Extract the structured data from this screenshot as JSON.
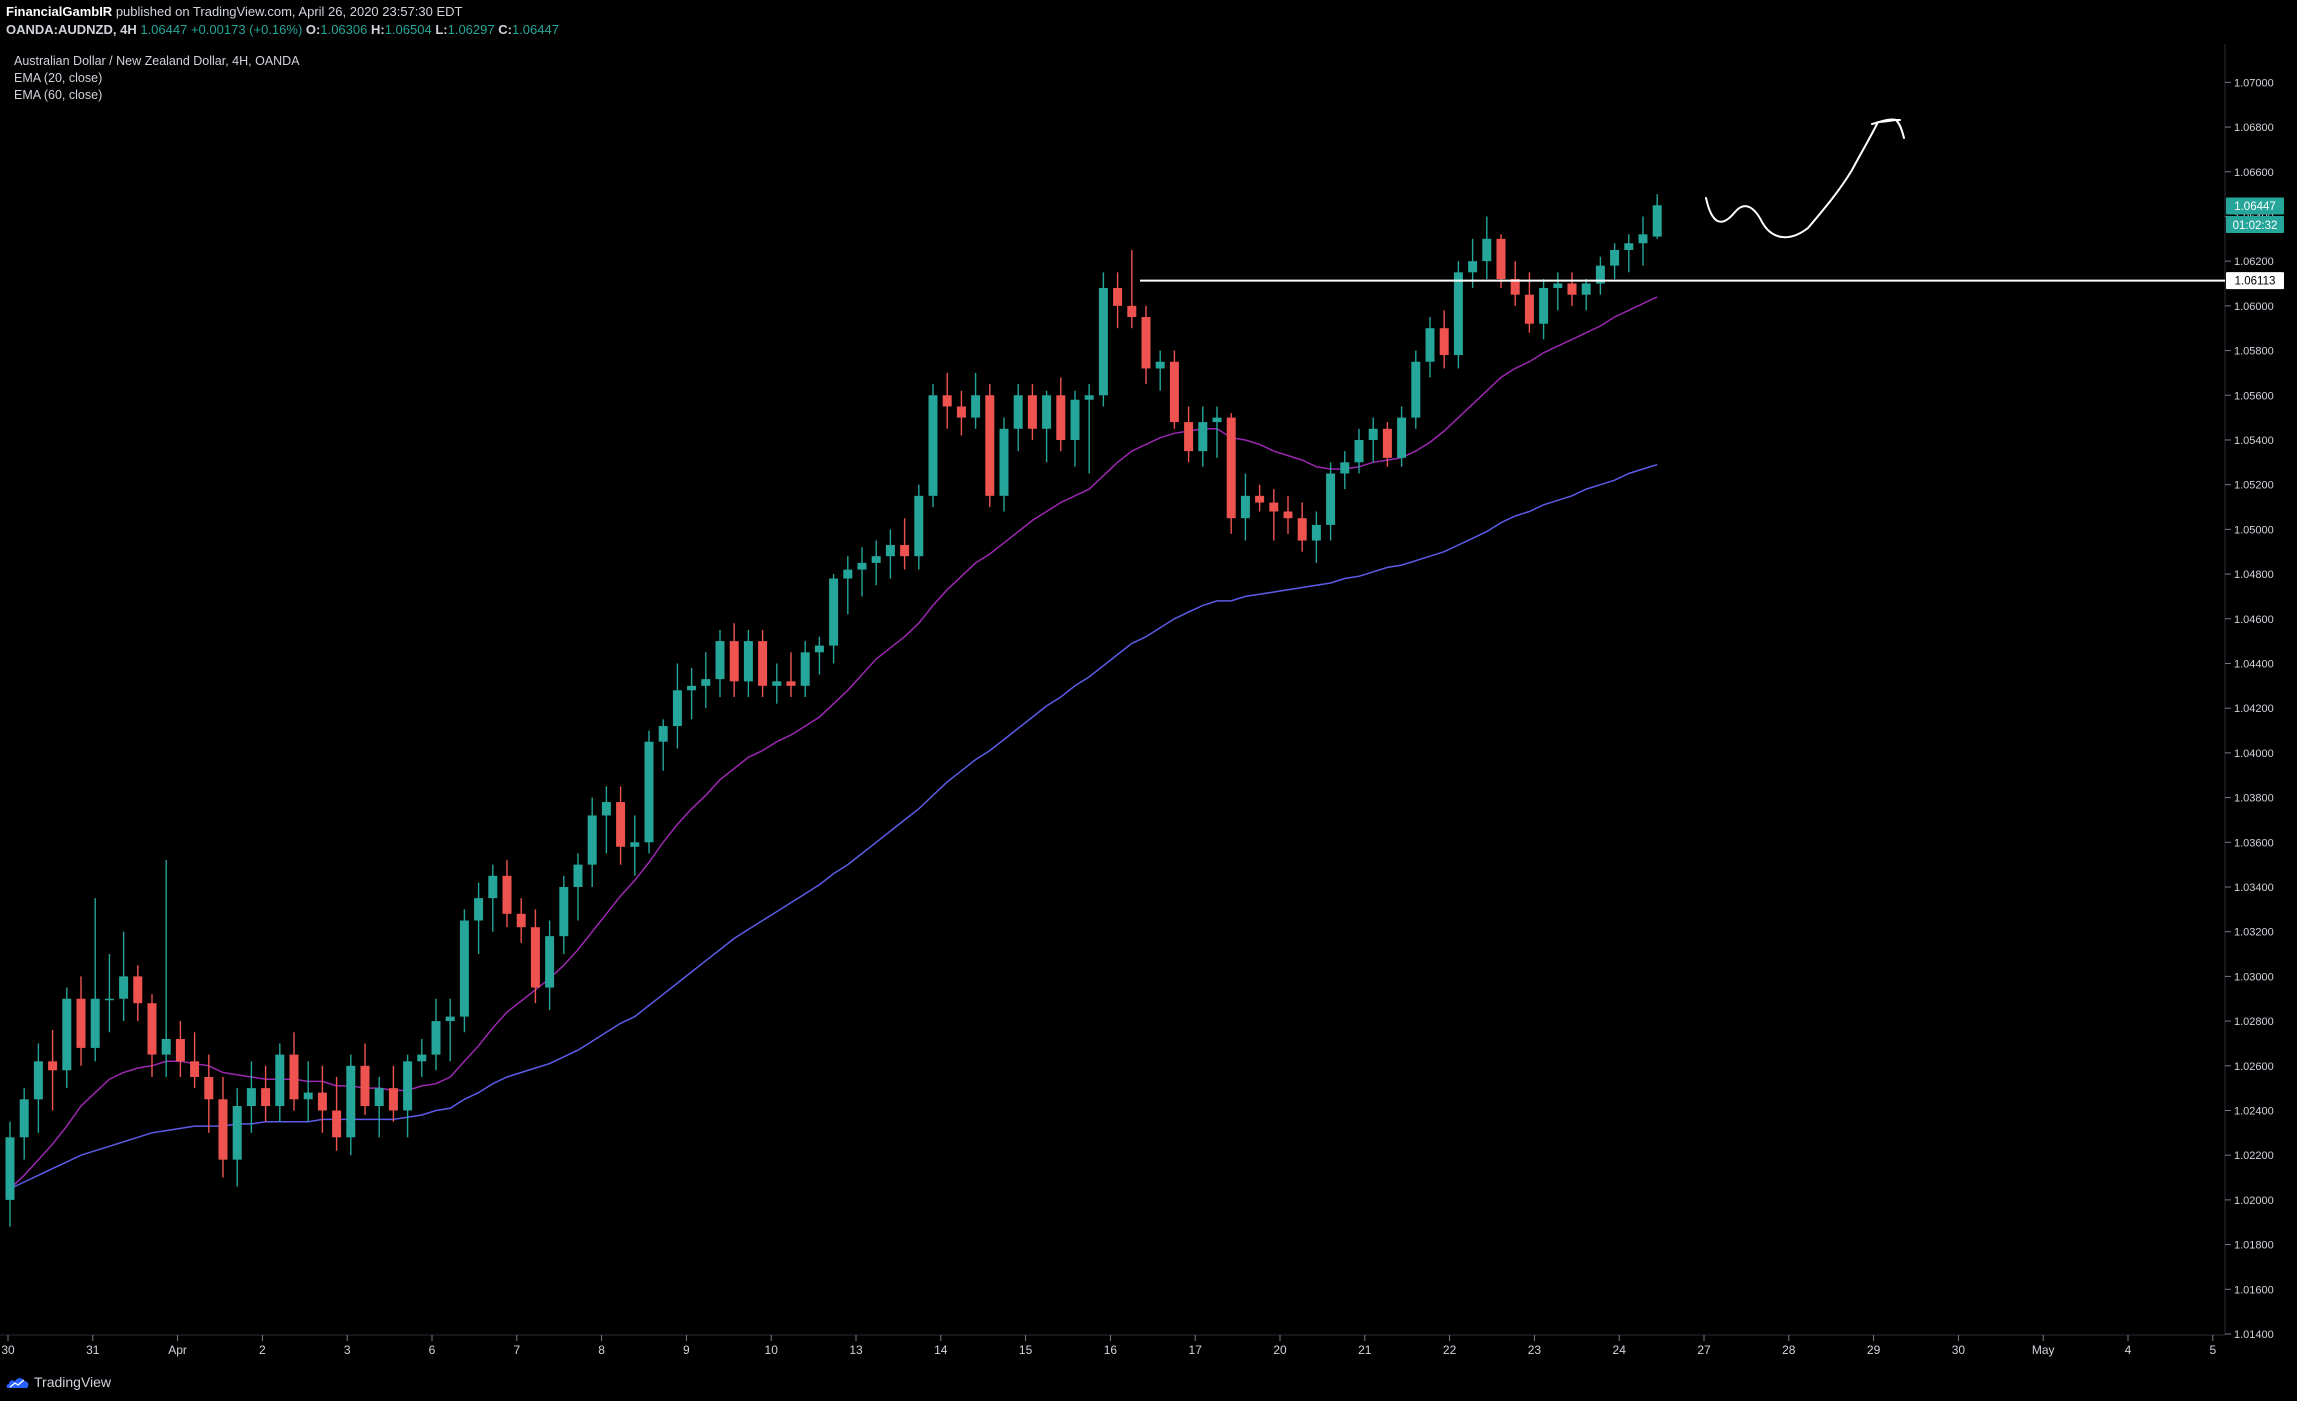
{
  "header": {
    "publisher": "FinancialGambIR",
    "published_text": "published on TradingView.com, April 26, 2020 23:57:30 EDT",
    "symbol_line": {
      "symbol": "OANDA:AUDNZD, 4H",
      "last": "1.06447",
      "change": "+0.00173 (+0.16%)",
      "o_label": "O:",
      "o": "1.06306",
      "h_label": "H:",
      "h": "1.06504",
      "l_label": "L:",
      "l": "1.06297",
      "c_label": "C:",
      "c": "1.06447"
    }
  },
  "legend": {
    "title": "Australian Dollar / New Zealand Dollar, 4H, OANDA",
    "ema1": "EMA (20, close)",
    "ema2": "EMA (60, close)"
  },
  "footer": {
    "brand": "TradingView"
  },
  "colors": {
    "up": "#26a69a",
    "down": "#ef5350",
    "ema20": "#9c27b0",
    "ema60": "#5c5ce8",
    "grid_axis": "#787b86",
    "hline": "#ffffff"
  },
  "chart_data": {
    "type": "candlestick",
    "title": "Australian Dollar / New Zealand Dollar, 4H, OANDA",
    "ylim": [
      1.014,
      1.071
    ],
    "y_ticks": [
      "1.07000",
      "1.06800",
      "1.06600",
      "1.06400",
      "1.06200",
      "1.06000",
      "1.05800",
      "1.05600",
      "1.05400",
      "1.05200",
      "1.05000",
      "1.04800",
      "1.04600",
      "1.04400",
      "1.04200",
      "1.04000",
      "1.03800",
      "1.03600",
      "1.03400",
      "1.03200",
      "1.03000",
      "1.02800",
      "1.02600",
      "1.02400",
      "1.02200",
      "1.02000",
      "1.01800",
      "1.01600",
      "1.01400"
    ],
    "x_ticks": [
      "30",
      "31",
      "Apr",
      "2",
      "3",
      "6",
      "7",
      "8",
      "9",
      "10",
      "13",
      "14",
      "15",
      "16",
      "17",
      "20",
      "21",
      "22",
      "23",
      "24",
      "27",
      "28",
      "29",
      "30",
      "May",
      "4",
      "5"
    ],
    "price_label": "1.06447",
    "countdown_label": "01:02:32",
    "hline_label": "1.06113",
    "hline_value": 1.06113,
    "candles_ohlc": [
      [
        1.02,
        1.0235,
        1.0188,
        1.0228
      ],
      [
        1.0228,
        1.025,
        1.0218,
        1.0245
      ],
      [
        1.0245,
        1.027,
        1.023,
        1.0262
      ],
      [
        1.0262,
        1.0276,
        1.024,
        1.0258
      ],
      [
        1.0258,
        1.0295,
        1.025,
        1.029
      ],
      [
        1.029,
        1.03,
        1.026,
        1.0268
      ],
      [
        1.0268,
        1.0335,
        1.0262,
        1.029
      ],
      [
        1.029,
        1.031,
        1.0275,
        1.029
      ],
      [
        1.029,
        1.032,
        1.028,
        1.03
      ],
      [
        1.03,
        1.0305,
        1.028,
        1.0288
      ],
      [
        1.0288,
        1.0292,
        1.0255,
        1.0265
      ],
      [
        1.0265,
        1.0352,
        1.0255,
        1.0272
      ],
      [
        1.0272,
        1.028,
        1.0255,
        1.0262
      ],
      [
        1.0262,
        1.0275,
        1.025,
        1.0255
      ],
      [
        1.0255,
        1.0265,
        1.023,
        1.0245
      ],
      [
        1.0245,
        1.0255,
        1.021,
        1.0218
      ],
      [
        1.0218,
        1.025,
        1.0206,
        1.0242
      ],
      [
        1.0242,
        1.0262,
        1.023,
        1.025
      ],
      [
        1.025,
        1.026,
        1.0235,
        1.0242
      ],
      [
        1.0242,
        1.027,
        1.0235,
        1.0265
      ],
      [
        1.0265,
        1.0275,
        1.024,
        1.0245
      ],
      [
        1.0245,
        1.0262,
        1.0235,
        1.0248
      ],
      [
        1.0248,
        1.026,
        1.023,
        1.024
      ],
      [
        1.024,
        1.0255,
        1.0222,
        1.0228
      ],
      [
        1.0228,
        1.0265,
        1.022,
        1.026
      ],
      [
        1.026,
        1.027,
        1.0238,
        1.0242
      ],
      [
        1.0242,
        1.0255,
        1.0228,
        1.025
      ],
      [
        1.025,
        1.026,
        1.0235,
        1.024
      ],
      [
        1.024,
        1.0265,
        1.0228,
        1.0262
      ],
      [
        1.0262,
        1.0272,
        1.0255,
        1.0265
      ],
      [
        1.0265,
        1.029,
        1.0258,
        1.028
      ],
      [
        1.028,
        1.029,
        1.0262,
        1.0282
      ],
      [
        1.0282,
        1.033,
        1.0275,
        1.0325
      ],
      [
        1.0325,
        1.0342,
        1.031,
        1.0335
      ],
      [
        1.0335,
        1.035,
        1.032,
        1.0345
      ],
      [
        1.0345,
        1.0352,
        1.0322,
        1.0328
      ],
      [
        1.0328,
        1.0335,
        1.0315,
        1.0322
      ],
      [
        1.0322,
        1.033,
        1.0288,
        1.0295
      ],
      [
        1.0295,
        1.0325,
        1.0285,
        1.0318
      ],
      [
        1.0318,
        1.0345,
        1.031,
        1.034
      ],
      [
        1.034,
        1.0355,
        1.0325,
        1.035
      ],
      [
        1.035,
        1.038,
        1.034,
        1.0372
      ],
      [
        1.0372,
        1.0385,
        1.0355,
        1.0378
      ],
      [
        1.0378,
        1.0385,
        1.035,
        1.0358
      ],
      [
        1.0358,
        1.0372,
        1.0345,
        1.036
      ],
      [
        1.036,
        1.041,
        1.0355,
        1.0405
      ],
      [
        1.0405,
        1.0415,
        1.0392,
        1.0412
      ],
      [
        1.0412,
        1.044,
        1.0402,
        1.0428
      ],
      [
        1.0428,
        1.0438,
        1.0415,
        1.043
      ],
      [
        1.043,
        1.0445,
        1.042,
        1.0433
      ],
      [
        1.0433,
        1.0455,
        1.0425,
        1.045
      ],
      [
        1.045,
        1.0458,
        1.0425,
        1.0432
      ],
      [
        1.0432,
        1.0455,
        1.0425,
        1.045
      ],
      [
        1.045,
        1.0455,
        1.0425,
        1.043
      ],
      [
        1.043,
        1.044,
        1.0422,
        1.0432
      ],
      [
        1.0432,
        1.0445,
        1.0425,
        1.043
      ],
      [
        1.043,
        1.045,
        1.0425,
        1.0445
      ],
      [
        1.0445,
        1.0452,
        1.0435,
        1.0448
      ],
      [
        1.0448,
        1.048,
        1.044,
        1.0478
      ],
      [
        1.0478,
        1.0488,
        1.0462,
        1.0482
      ],
      [
        1.0482,
        1.0492,
        1.047,
        1.0485
      ],
      [
        1.0485,
        1.0495,
        1.0475,
        1.0488
      ],
      [
        1.0488,
        1.05,
        1.0478,
        1.0493
      ],
      [
        1.0493,
        1.0505,
        1.0482,
        1.0488
      ],
      [
        1.0488,
        1.052,
        1.0482,
        1.0515
      ],
      [
        1.0515,
        1.0565,
        1.051,
        1.056
      ],
      [
        1.056,
        1.057,
        1.0545,
        1.0555
      ],
      [
        1.0555,
        1.0562,
        1.0542,
        1.055
      ],
      [
        1.055,
        1.057,
        1.0545,
        1.056
      ],
      [
        1.056,
        1.0565,
        1.051,
        1.0515
      ],
      [
        1.0515,
        1.055,
        1.0508,
        1.0545
      ],
      [
        1.0545,
        1.0565,
        1.0535,
        1.056
      ],
      [
        1.056,
        1.0565,
        1.054,
        1.0545
      ],
      [
        1.0545,
        1.0562,
        1.053,
        1.056
      ],
      [
        1.056,
        1.0568,
        1.0535,
        1.054
      ],
      [
        1.054,
        1.0562,
        1.0528,
        1.0558
      ],
      [
        1.0558,
        1.0565,
        1.0525,
        1.056
      ],
      [
        1.056,
        1.0615,
        1.0555,
        1.0608
      ],
      [
        1.0608,
        1.0615,
        1.059,
        1.06
      ],
      [
        1.06,
        1.0625,
        1.059,
        1.0595
      ],
      [
        1.0595,
        1.06,
        1.0565,
        1.0572
      ],
      [
        1.0572,
        1.058,
        1.0562,
        1.0575
      ],
      [
        1.0575,
        1.058,
        1.0545,
        1.0548
      ],
      [
        1.0548,
        1.0555,
        1.053,
        1.0535
      ],
      [
        1.0535,
        1.0555,
        1.0528,
        1.0548
      ],
      [
        1.0548,
        1.0555,
        1.0532,
        1.055
      ],
      [
        1.055,
        1.0552,
        1.0498,
        1.0505
      ],
      [
        1.0505,
        1.0525,
        1.0495,
        1.0515
      ],
      [
        1.0515,
        1.052,
        1.0508,
        1.0512
      ],
      [
        1.0512,
        1.0518,
        1.0495,
        1.0508
      ],
      [
        1.0508,
        1.0515,
        1.0498,
        1.0505
      ],
      [
        1.0505,
        1.0512,
        1.049,
        1.0495
      ],
      [
        1.0495,
        1.0508,
        1.0485,
        1.0502
      ],
      [
        1.0502,
        1.053,
        1.0495,
        1.0525
      ],
      [
        1.0525,
        1.0535,
        1.0518,
        1.053
      ],
      [
        1.053,
        1.0545,
        1.0525,
        1.054
      ],
      [
        1.054,
        1.055,
        1.053,
        1.0545
      ],
      [
        1.0545,
        1.0548,
        1.0528,
        1.0532
      ],
      [
        1.0532,
        1.0555,
        1.0528,
        1.055
      ],
      [
        1.055,
        1.058,
        1.0545,
        1.0575
      ],
      [
        1.0575,
        1.0595,
        1.0568,
        1.059
      ],
      [
        1.059,
        1.0598,
        1.0572,
        1.0578
      ],
      [
        1.0578,
        1.062,
        1.0572,
        1.0615
      ],
      [
        1.0615,
        1.063,
        1.0608,
        1.062
      ],
      [
        1.062,
        1.064,
        1.0612,
        1.063
      ],
      [
        1.063,
        1.0632,
        1.0608,
        1.0612
      ],
      [
        1.0612,
        1.062,
        1.06,
        1.0605
      ],
      [
        1.0605,
        1.0615,
        1.0588,
        1.0592
      ],
      [
        1.0592,
        1.0612,
        1.0585,
        1.0608
      ],
      [
        1.0608,
        1.0615,
        1.0598,
        1.061
      ],
      [
        1.061,
        1.0615,
        1.06,
        1.0605
      ],
      [
        1.0605,
        1.0612,
        1.0598,
        1.061
      ],
      [
        1.061,
        1.0622,
        1.0605,
        1.0618
      ],
      [
        1.0618,
        1.0628,
        1.0612,
        1.0625
      ],
      [
        1.0625,
        1.0632,
        1.0615,
        1.0628
      ],
      [
        1.0628,
        1.064,
        1.0618,
        1.0632
      ],
      [
        1.0631,
        1.065,
        1.063,
        1.0645
      ]
    ],
    "ema20": [
      1.0205,
      1.0211,
      1.0218,
      1.0225,
      1.0233,
      1.0242,
      1.0248,
      1.0254,
      1.0257,
      1.0259,
      1.026,
      1.0262,
      1.0262,
      1.0261,
      1.026,
      1.0257,
      1.0256,
      1.0255,
      1.0254,
      1.0254,
      1.0254,
      1.0253,
      1.0253,
      1.0251,
      1.0251,
      1.025,
      1.025,
      1.0249,
      1.0249,
      1.0251,
      1.0252,
      1.0255,
      1.0262,
      1.0269,
      1.0277,
      1.0284,
      1.0289,
      1.0294,
      1.0299,
      1.0305,
      1.0312,
      1.032,
      1.0328,
      1.0336,
      1.0343,
      1.0351,
      1.036,
      1.0368,
      1.0375,
      1.0381,
      1.0388,
      1.0393,
      1.0398,
      1.0401,
      1.0405,
      1.0408,
      1.0412,
      1.0416,
      1.0422,
      1.0428,
      1.0435,
      1.0442,
      1.0447,
      1.0452,
      1.0458,
      1.0466,
      1.0473,
      1.0479,
      1.0485,
      1.0489,
      1.0494,
      1.0499,
      1.0504,
      1.0508,
      1.0512,
      1.0515,
      1.0518,
      1.0524,
      1.053,
      1.0535,
      1.0538,
      1.0541,
      1.0543,
      1.0544,
      1.0545,
      1.0545,
      1.0541,
      1.054,
      1.0538,
      1.0535,
      1.0533,
      1.0531,
      1.0528,
      1.0527,
      1.0527,
      1.0528,
      1.053,
      1.0531,
      1.0532,
      1.0535,
      1.0539,
      1.0544,
      1.055,
      1.0556,
      1.0562,
      1.0568,
      1.0572,
      1.0575,
      1.0579,
      1.0582,
      1.0585,
      1.0588,
      1.0591,
      1.0595,
      1.0598,
      1.0601,
      1.0604
    ],
    "ema60": [
      1.0205,
      1.0208,
      1.0211,
      1.0214,
      1.0217,
      1.022,
      1.0222,
      1.0224,
      1.0226,
      1.0228,
      1.023,
      1.0231,
      1.0232,
      1.0233,
      1.0233,
      1.0233,
      1.0234,
      1.0234,
      1.0235,
      1.0235,
      1.0235,
      1.0235,
      1.0236,
      1.0236,
      1.0236,
      1.0236,
      1.0236,
      1.0236,
      1.0237,
      1.0238,
      1.024,
      1.0241,
      1.0245,
      1.0248,
      1.0252,
      1.0255,
      1.0257,
      1.0259,
      1.0261,
      1.0264,
      1.0267,
      1.0271,
      1.0275,
      1.0279,
      1.0282,
      1.0287,
      1.0292,
      1.0297,
      1.0302,
      1.0307,
      1.0312,
      1.0317,
      1.0321,
      1.0325,
      1.0329,
      1.0333,
      1.0337,
      1.0341,
      1.0346,
      1.035,
      1.0355,
      1.036,
      1.0365,
      1.037,
      1.0375,
      1.0381,
      1.0387,
      1.0392,
      1.0397,
      1.0401,
      1.0406,
      1.0411,
      1.0416,
      1.0421,
      1.0425,
      1.043,
      1.0434,
      1.0439,
      1.0444,
      1.0449,
      1.0452,
      1.0456,
      1.046,
      1.0463,
      1.0466,
      1.0468,
      1.0468,
      1.047,
      1.0471,
      1.0472,
      1.0473,
      1.0474,
      1.0475,
      1.0476,
      1.0478,
      1.0479,
      1.0481,
      1.0483,
      1.0484,
      1.0486,
      1.0488,
      1.049,
      1.0493,
      1.0496,
      1.0499,
      1.0503,
      1.0506,
      1.0508,
      1.0511,
      1.0513,
      1.0515,
      1.0518,
      1.052,
      1.0522,
      1.0525,
      1.0527,
      1.0529
    ]
  }
}
